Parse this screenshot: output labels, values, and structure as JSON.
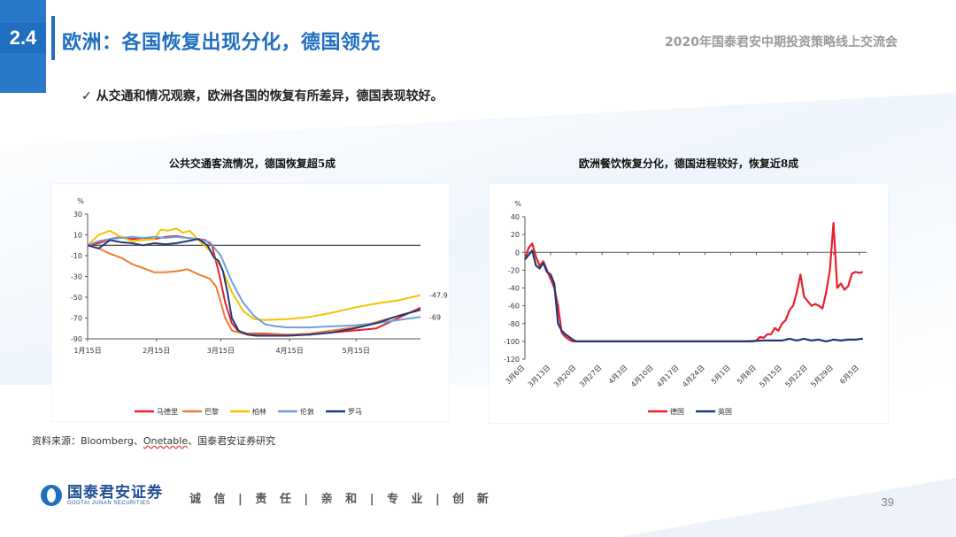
{
  "header": {
    "section_number": "2.4",
    "title": "欧洲：各国恢复出现分化，德国领先",
    "right_text": "2020年国泰君安中期投资策略线上交流会"
  },
  "subtitle": "✓ 从交通和情况观察，欧洲各国的恢复有所差异，德国表现较好。",
  "colors": {
    "brand_blue": "#1f6ec0",
    "madrid": "#e8202a",
    "paris": "#ed7d31",
    "berlin": "#f5c200",
    "london": "#6fa0d8",
    "rome": "#1f3a7a",
    "germany": "#e8202a",
    "uk": "#1f3a7a"
  },
  "chart_data": [
    {
      "type": "line",
      "title": "公共交通客流情况，德国恢复超5成",
      "ylabel": "%",
      "ylim": [
        -90,
        30
      ],
      "yticks": [
        30,
        10,
        -10,
        -30,
        -50,
        -70,
        -90
      ],
      "x_tick_labels": [
        "1月15日",
        "2月15日",
        "3月15日",
        "4月15日",
        "5月15日"
      ],
      "x_domain": [
        0,
        150
      ],
      "x_tick_positions": [
        0,
        31,
        60,
        91,
        121
      ],
      "end_labels": [
        "-47.9",
        "-69"
      ],
      "series": [
        {
          "name": "马德里",
          "color_key": "madrid",
          "x": [
            0,
            5,
            10,
            15,
            20,
            25,
            30,
            35,
            40,
            45,
            50,
            53,
            56,
            59,
            62,
            65,
            68,
            72,
            76,
            80,
            90,
            100,
            110,
            120,
            130,
            140,
            150
          ],
          "y": [
            0,
            2,
            6,
            8,
            6,
            7,
            6,
            8,
            9,
            7,
            6,
            5,
            0,
            -25,
            -55,
            -75,
            -83,
            -85,
            -85,
            -85,
            -86,
            -86,
            -84,
            -82,
            -80,
            -70,
            -60
          ]
        },
        {
          "name": "巴黎",
          "color_key": "paris",
          "x": [
            0,
            5,
            10,
            15,
            20,
            25,
            30,
            35,
            40,
            45,
            50,
            55,
            58,
            60,
            62,
            65,
            70,
            75,
            80,
            90,
            100,
            110,
            120,
            130,
            140,
            150
          ],
          "y": [
            0,
            -3,
            -8,
            -12,
            -18,
            -22,
            -26,
            -26,
            -25,
            -23,
            -28,
            -32,
            -40,
            -55,
            -70,
            -82,
            -85,
            -86,
            -86,
            -86,
            -85,
            -82,
            -79,
            -74,
            -68,
            -62
          ]
        },
        {
          "name": "柏林",
          "color_key": "berlin",
          "x": [
            0,
            5,
            10,
            15,
            20,
            25,
            30,
            33,
            36,
            40,
            43,
            46,
            50,
            55,
            60,
            65,
            70,
            75,
            80,
            90,
            100,
            110,
            120,
            130,
            140,
            150
          ],
          "y": [
            0,
            10,
            14,
            8,
            4,
            5,
            6,
            15,
            14,
            16,
            12,
            14,
            5,
            -5,
            -20,
            -45,
            -63,
            -71,
            -72,
            -71,
            -69,
            -65,
            -60,
            -56,
            -53,
            -48
          ]
        },
        {
          "name": "伦敦",
          "color_key": "london",
          "x": [
            0,
            5,
            10,
            15,
            20,
            25,
            30,
            35,
            40,
            45,
            50,
            55,
            60,
            65,
            70,
            75,
            80,
            85,
            90,
            100,
            110,
            120,
            130,
            140,
            150
          ],
          "y": [
            0,
            4,
            6,
            7,
            8,
            7,
            8,
            7,
            8,
            7,
            6,
            3,
            -10,
            -35,
            -55,
            -68,
            -76,
            -78,
            -79,
            -79,
            -78,
            -77,
            -75,
            -72,
            -69
          ]
        },
        {
          "name": "罗马",
          "color_key": "rome",
          "x": [
            0,
            5,
            10,
            15,
            20,
            25,
            30,
            35,
            40,
            45,
            50,
            54,
            57,
            59,
            61,
            63,
            65,
            68,
            72,
            76,
            80,
            90,
            100,
            110,
            120,
            130,
            140,
            150
          ],
          "y": [
            0,
            -3,
            5,
            3,
            2,
            0,
            2,
            1,
            2,
            4,
            6,
            0,
            -12,
            -15,
            -25,
            -45,
            -70,
            -82,
            -86,
            -87,
            -87,
            -87,
            -86,
            -84,
            -80,
            -75,
            -68,
            -62
          ]
        }
      ]
    },
    {
      "type": "line",
      "title": "欧洲餐饮恢复分化，德国进程较好，恢复近8成",
      "ylabel": "%",
      "ylim": [
        -120,
        40
      ],
      "yticks": [
        40,
        20,
        0,
        -20,
        -40,
        -60,
        -80,
        -100,
        -120
      ],
      "x_tick_labels": [
        "3月6日",
        "3月13日",
        "3月20日",
        "3月27日",
        "4月3日",
        "4月10日",
        "4月17日",
        "4月24日",
        "5月1日",
        "5月8日",
        "5月15日",
        "5月22日",
        "5月29日",
        "6月5日"
      ],
      "x_domain": [
        0,
        93
      ],
      "x_tick_positions": [
        0,
        7,
        14,
        21,
        28,
        35,
        42,
        49,
        56,
        63,
        70,
        77,
        84,
        91
      ],
      "series": [
        {
          "name": "德国",
          "color_key": "germany",
          "x": [
            0,
            1,
            2,
            3,
            4,
            5,
            6,
            7,
            8,
            9,
            10,
            11,
            12,
            13,
            14,
            20,
            30,
            40,
            50,
            60,
            62,
            63,
            64,
            65,
            66,
            67,
            68,
            69,
            70,
            71,
            72,
            73,
            74,
            75,
            76,
            77,
            78,
            79,
            80,
            81,
            82,
            83,
            84,
            85,
            86,
            87,
            88,
            89,
            90,
            91,
            92
          ],
          "y": [
            -8,
            5,
            10,
            -5,
            -15,
            -10,
            -20,
            -30,
            -40,
            -60,
            -90,
            -95,
            -98,
            -100,
            -100,
            -100,
            -100,
            -100,
            -100,
            -100,
            -100,
            -99,
            -95,
            -96,
            -92,
            -92,
            -85,
            -88,
            -80,
            -76,
            -65,
            -60,
            -45,
            -25,
            -50,
            -55,
            -60,
            -58,
            -60,
            -63,
            -45,
            -20,
            33,
            -40,
            -35,
            -42,
            -38,
            -24,
            -22,
            -23,
            -22
          ]
        },
        {
          "name": "英国",
          "color_key": "uk",
          "x": [
            0,
            1,
            2,
            3,
            4,
            5,
            6,
            7,
            8,
            9,
            10,
            11,
            12,
            13,
            14,
            20,
            30,
            40,
            50,
            60,
            65,
            70,
            72,
            74,
            76,
            78,
            80,
            82,
            84,
            86,
            88,
            90,
            92
          ],
          "y": [
            -8,
            -3,
            2,
            -15,
            -18,
            -12,
            -22,
            -25,
            -35,
            -80,
            -88,
            -92,
            -95,
            -98,
            -100,
            -100,
            -100,
            -100,
            -100,
            -100,
            -99,
            -99,
            -97,
            -99,
            -97,
            -99,
            -98,
            -100,
            -98,
            -99,
            -98,
            -98,
            -97
          ]
        }
      ]
    }
  ],
  "source": {
    "prefix": "资料来源：Bloomberg、",
    "underlined": "Onetable",
    "suffix": "、国泰君安证券研究"
  },
  "footer": {
    "logo_cn": "国泰君安证券",
    "logo_en": "GUOTAI JUNAN SECURITIES",
    "motto": "诚 信 | 责 任 | 亲 和 | 专 业 | 创 新",
    "page_number": "39"
  }
}
